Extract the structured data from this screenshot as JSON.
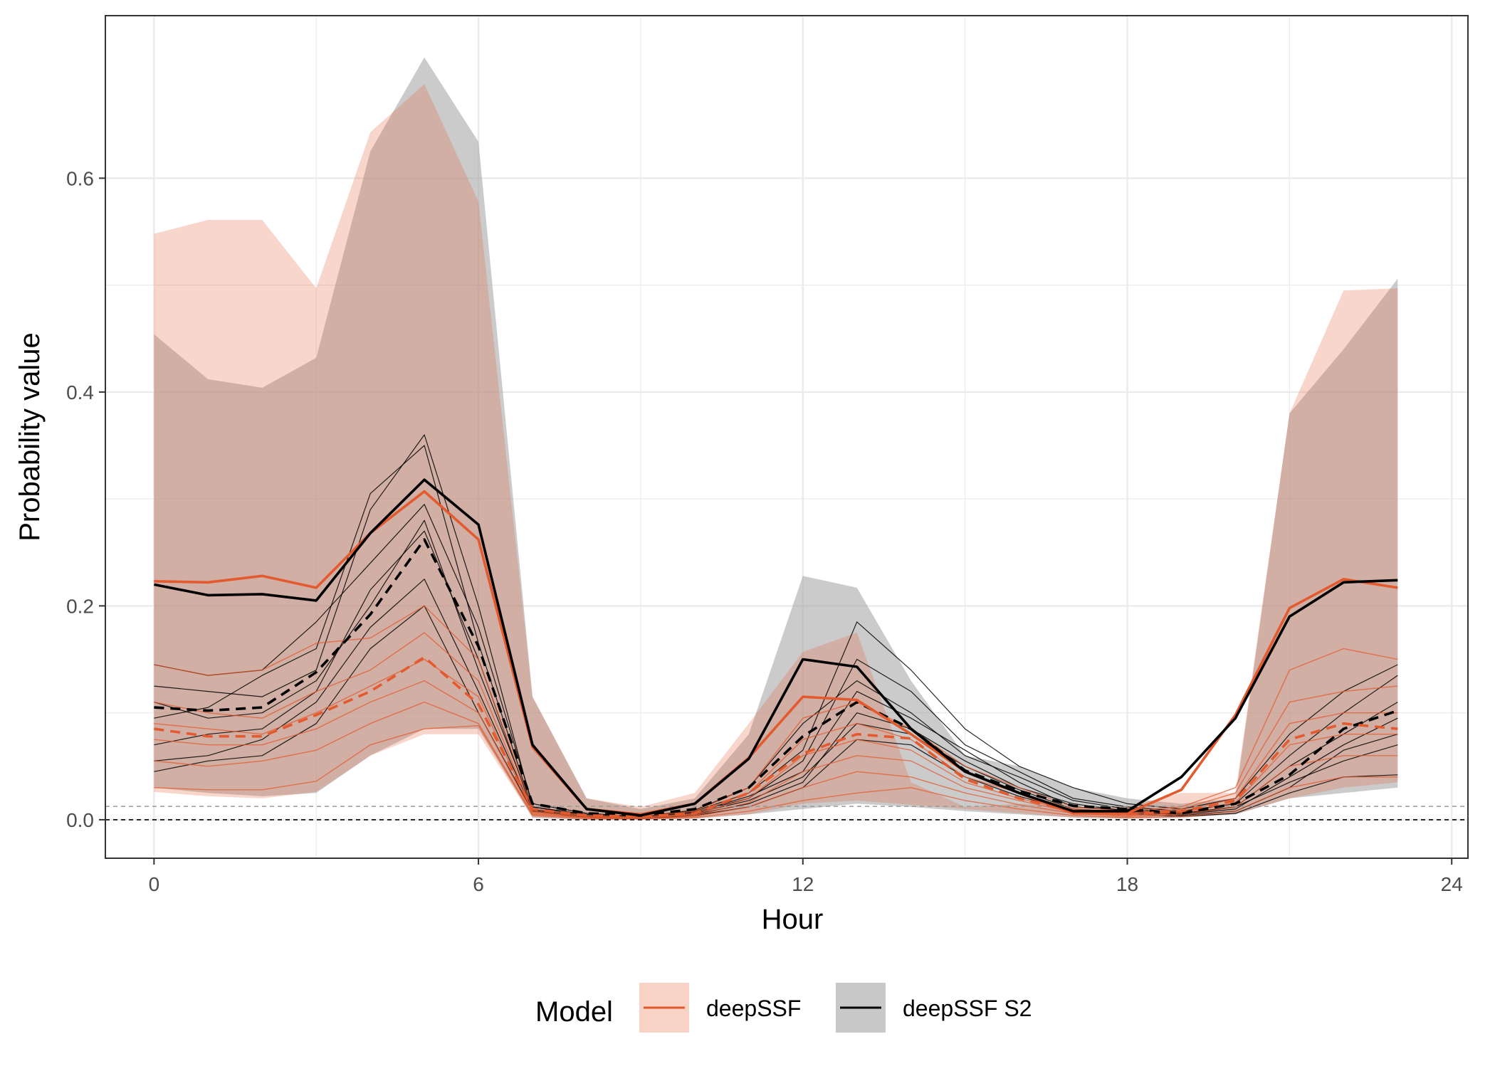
{
  "chart_data": {
    "type": "line",
    "xlabel": "Hour",
    "ylabel": "Probability value",
    "xlim": [
      -0.9,
      24.3
    ],
    "ylim": [
      -0.036,
      0.752
    ],
    "x_ticks": [
      0,
      6,
      12,
      18,
      24
    ],
    "y_ticks": [
      0.0,
      0.2,
      0.4,
      0.6
    ],
    "y_tick_labels": [
      "0.0",
      "0.2",
      "0.4",
      "0.6"
    ],
    "grid": true,
    "reference_lines": [
      0.0,
      0.0125
    ],
    "legend": {
      "title": "Model",
      "position": "bottom",
      "entries": [
        "deepSSF",
        "deepSSF S2"
      ]
    },
    "colors": {
      "deepSSF": "#e35a2f",
      "deepSSF_ribbon": "#f8d3c6",
      "deepSSF_S2": "#000000",
      "deepSSF_S2_ribbon": "#a8a8a8",
      "overlap_ribbon": "#c5b1aa",
      "grid": "#ebebeb"
    },
    "x": [
      0,
      1,
      2,
      3,
      4,
      5,
      6,
      7,
      8,
      9,
      10,
      11,
      12,
      13,
      14,
      15,
      16,
      17,
      18,
      19,
      20,
      21,
      22,
      23
    ],
    "series": [
      {
        "name": "deepSSF",
        "role": "mean",
        "values": [
          0.223,
          0.222,
          0.228,
          0.217,
          0.268,
          0.307,
          0.262,
          0.068,
          0.01,
          0.005,
          0.015,
          0.058,
          0.115,
          0.112,
          0.08,
          0.045,
          0.025,
          0.006,
          0.006,
          0.028,
          0.098,
          0.198,
          0.225,
          0.217
        ]
      },
      {
        "name": "deepSSF",
        "role": "median",
        "values": [
          0.085,
          0.078,
          0.078,
          0.098,
          0.12,
          0.152,
          0.108,
          0.01,
          0.004,
          0.003,
          0.006,
          0.025,
          0.062,
          0.08,
          0.076,
          0.038,
          0.02,
          0.008,
          0.005,
          0.008,
          0.018,
          0.075,
          0.09,
          0.085
        ]
      },
      {
        "name": "deepSSF S2",
        "role": "mean",
        "values": [
          0.22,
          0.21,
          0.211,
          0.205,
          0.268,
          0.318,
          0.276,
          0.07,
          0.01,
          0.004,
          0.015,
          0.057,
          0.15,
          0.143,
          0.085,
          0.045,
          0.025,
          0.008,
          0.008,
          0.04,
          0.095,
          0.19,
          0.222,
          0.224
        ]
      },
      {
        "name": "deepSSF S2",
        "role": "median",
        "values": [
          0.105,
          0.102,
          0.105,
          0.138,
          0.192,
          0.262,
          0.162,
          0.015,
          0.006,
          0.004,
          0.01,
          0.03,
          0.078,
          0.11,
          0.085,
          0.046,
          0.027,
          0.013,
          0.01,
          0.006,
          0.015,
          0.042,
          0.085,
          0.102
        ]
      }
    ],
    "ribbons": [
      {
        "name": "deepSSF",
        "lower": [
          0.026,
          0.022,
          0.02,
          0.026,
          0.06,
          0.08,
          0.08,
          0.002,
          0.0,
          0.0,
          0.001,
          0.005,
          0.015,
          0.018,
          0.014,
          0.01,
          0.006,
          0.002,
          0.001,
          0.002,
          0.005,
          0.02,
          0.03,
          0.035
        ],
        "upper": [
          0.548,
          0.561,
          0.561,
          0.497,
          0.643,
          0.688,
          0.578,
          0.115,
          0.02,
          0.012,
          0.025,
          0.09,
          0.157,
          0.175,
          0.035,
          0.012,
          0.015,
          0.012,
          0.012,
          0.025,
          0.025,
          0.38,
          0.495,
          0.497
        ]
      },
      {
        "name": "deepSSF S2",
        "lower": [
          0.03,
          0.025,
          0.022,
          0.025,
          0.06,
          0.085,
          0.085,
          0.002,
          0.0,
          0.0,
          0.001,
          0.005,
          0.01,
          0.015,
          0.012,
          0.008,
          0.005,
          0.002,
          0.001,
          0.002,
          0.005,
          0.02,
          0.025,
          0.03
        ],
        "upper": [
          0.454,
          0.412,
          0.404,
          0.432,
          0.625,
          0.713,
          0.634,
          0.115,
          0.02,
          0.01,
          0.02,
          0.08,
          0.228,
          0.217,
          0.13,
          0.06,
          0.05,
          0.03,
          0.02,
          0.015,
          0.02,
          0.38,
          0.44,
          0.506
        ]
      }
    ],
    "individual_lines": [
      {
        "model": "deepSSF S2",
        "values": [
          0.125,
          0.12,
          0.115,
          0.14,
          0.29,
          0.36,
          0.2,
          0.012,
          0.005,
          0.003,
          0.008,
          0.025,
          0.065,
          0.185,
          0.14,
          0.085,
          0.05,
          0.03,
          0.015,
          0.01,
          0.02,
          0.08,
          0.12,
          0.145
        ]
      },
      {
        "model": "deepSSF S2",
        "values": [
          0.095,
          0.105,
          0.135,
          0.16,
          0.305,
          0.35,
          0.165,
          0.01,
          0.004,
          0.002,
          0.007,
          0.02,
          0.055,
          0.15,
          0.12,
          0.07,
          0.045,
          0.02,
          0.012,
          0.008,
          0.015,
          0.06,
          0.1,
          0.135
        ]
      },
      {
        "model": "deepSSF S2",
        "values": [
          0.145,
          0.135,
          0.14,
          0.185,
          0.24,
          0.295,
          0.18,
          0.015,
          0.006,
          0.003,
          0.009,
          0.03,
          0.09,
          0.13,
          0.1,
          0.06,
          0.04,
          0.018,
          0.01,
          0.006,
          0.012,
          0.05,
          0.08,
          0.11
        ]
      },
      {
        "model": "deepSSF S2",
        "values": [
          0.07,
          0.08,
          0.085,
          0.12,
          0.215,
          0.27,
          0.15,
          0.008,
          0.003,
          0.002,
          0.005,
          0.015,
          0.035,
          0.1,
          0.085,
          0.055,
          0.03,
          0.015,
          0.008,
          0.005,
          0.01,
          0.04,
          0.07,
          0.095
        ]
      },
      {
        "model": "deepSSF S2",
        "values": [
          0.11,
          0.095,
          0.1,
          0.13,
          0.2,
          0.28,
          0.14,
          0.012,
          0.004,
          0.003,
          0.007,
          0.022,
          0.045,
          0.12,
          0.095,
          0.065,
          0.035,
          0.012,
          0.009,
          0.004,
          0.008,
          0.03,
          0.065,
          0.08
        ]
      },
      {
        "model": "deepSSF S2",
        "values": [
          0.055,
          0.06,
          0.075,
          0.11,
          0.18,
          0.225,
          0.12,
          0.009,
          0.003,
          0.002,
          0.006,
          0.018,
          0.04,
          0.09,
          0.08,
          0.05,
          0.028,
          0.01,
          0.007,
          0.005,
          0.012,
          0.035,
          0.055,
          0.07
        ]
      },
      {
        "model": "deepSSF S2",
        "values": [
          0.045,
          0.055,
          0.06,
          0.09,
          0.16,
          0.2,
          0.1,
          0.008,
          0.002,
          0.001,
          0.004,
          0.012,
          0.03,
          0.075,
          0.07,
          0.04,
          0.022,
          0.008,
          0.006,
          0.003,
          0.006,
          0.025,
          0.04,
          0.042
        ]
      },
      {
        "model": "deepSSF",
        "values": [
          0.145,
          0.135,
          0.14,
          0.165,
          0.17,
          0.2,
          0.15,
          0.01,
          0.004,
          0.003,
          0.008,
          0.03,
          0.095,
          0.11,
          0.085,
          0.05,
          0.03,
          0.012,
          0.008,
          0.012,
          0.03,
          0.14,
          0.16,
          0.15
        ]
      },
      {
        "model": "deepSSF",
        "values": [
          0.11,
          0.1,
          0.095,
          0.12,
          0.14,
          0.175,
          0.13,
          0.008,
          0.003,
          0.002,
          0.006,
          0.025,
          0.075,
          0.09,
          0.075,
          0.04,
          0.025,
          0.01,
          0.006,
          0.01,
          0.025,
          0.11,
          0.12,
          0.125
        ]
      },
      {
        "model": "deepSSF",
        "values": [
          0.09,
          0.085,
          0.08,
          0.1,
          0.125,
          0.15,
          0.115,
          0.007,
          0.003,
          0.002,
          0.005,
          0.02,
          0.06,
          0.075,
          0.065,
          0.035,
          0.02,
          0.008,
          0.005,
          0.008,
          0.02,
          0.09,
          0.1,
          0.1
        ]
      },
      {
        "model": "deepSSF",
        "values": [
          0.075,
          0.07,
          0.07,
          0.085,
          0.11,
          0.13,
          0.1,
          0.006,
          0.002,
          0.002,
          0.004,
          0.016,
          0.045,
          0.06,
          0.055,
          0.03,
          0.018,
          0.007,
          0.004,
          0.006,
          0.016,
          0.07,
          0.08,
          0.08
        ]
      },
      {
        "model": "deepSSF",
        "values": [
          0.055,
          0.05,
          0.055,
          0.065,
          0.09,
          0.11,
          0.09,
          0.005,
          0.002,
          0.001,
          0.003,
          0.012,
          0.03,
          0.045,
          0.04,
          0.025,
          0.014,
          0.006,
          0.003,
          0.005,
          0.012,
          0.05,
          0.06,
          0.06
        ]
      },
      {
        "model": "deepSSF",
        "values": [
          0.03,
          0.028,
          0.028,
          0.036,
          0.07,
          0.085,
          0.088,
          0.004,
          0.001,
          0.001,
          0.002,
          0.008,
          0.018,
          0.025,
          0.03,
          0.018,
          0.01,
          0.004,
          0.002,
          0.003,
          0.008,
          0.03,
          0.04,
          0.04
        ]
      }
    ]
  }
}
